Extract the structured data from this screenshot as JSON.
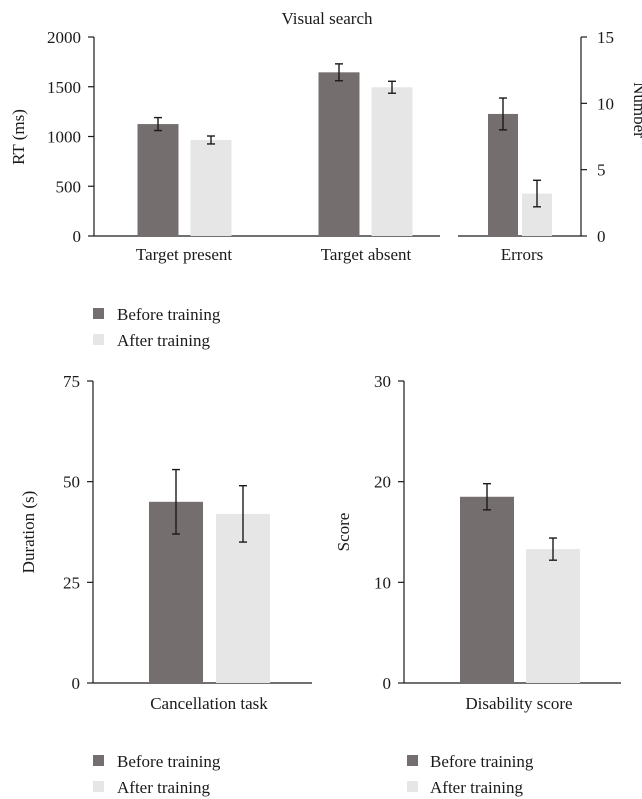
{
  "colors": {
    "before": "#746f6e",
    "after": "#e6e6e6"
  },
  "legends": [
    {
      "items": [
        {
          "label": "Before training",
          "color": "#746f6e"
        },
        {
          "label": "After training",
          "color": "#e6e6e6"
        }
      ]
    },
    {
      "items": [
        {
          "label": "Before training",
          "color": "#746f6e"
        },
        {
          "label": "After training",
          "color": "#e6e6e6"
        }
      ]
    },
    {
      "items": [
        {
          "label": "Before training",
          "color": "#746f6e"
        },
        {
          "label": "After training",
          "color": "#e6e6e6"
        }
      ]
    }
  ],
  "chart_data": [
    {
      "type": "bar",
      "title": "Visual search",
      "ylabel": "RT (ms)",
      "ylim": [
        0,
        2000
      ],
      "yticks": [
        0,
        500,
        1000,
        1500,
        2000
      ],
      "categories": [
        "Target present",
        "Target absent"
      ],
      "series": [
        {
          "name": "Before training",
          "values": [
            1125,
            1645
          ],
          "errors": [
            65,
            85
          ]
        },
        {
          "name": "After training",
          "values": [
            965,
            1495
          ],
          "errors": [
            40,
            60
          ]
        }
      ],
      "grid": false,
      "legend": "bottom"
    },
    {
      "type": "bar",
      "ylabel": "Number",
      "ylim": [
        0,
        15
      ],
      "yticks": [
        0,
        5,
        10,
        15
      ],
      "categories": [
        "Errors"
      ],
      "series": [
        {
          "name": "Before training",
          "values": [
            9.2
          ],
          "errors": [
            1.2
          ]
        },
        {
          "name": "After training",
          "values": [
            3.2
          ],
          "errors": [
            1.0
          ]
        }
      ],
      "grid": false,
      "legend": "bottom"
    },
    {
      "type": "bar",
      "ylabel": "Duration (s)",
      "ylim": [
        0,
        75
      ],
      "yticks": [
        0,
        25,
        50,
        75
      ],
      "categories": [
        "Cancellation task"
      ],
      "series": [
        {
          "name": "Before training",
          "values": [
            45
          ],
          "errors": [
            8
          ]
        },
        {
          "name": "After training",
          "values": [
            42
          ],
          "errors": [
            7
          ]
        }
      ],
      "grid": false,
      "legend": "bottom"
    },
    {
      "type": "bar",
      "ylabel": "Score",
      "ylim": [
        0,
        30
      ],
      "yticks": [
        0,
        10,
        20,
        30
      ],
      "categories": [
        "Disability score"
      ],
      "series": [
        {
          "name": "Before training",
          "values": [
            18.5
          ],
          "errors": [
            1.3
          ]
        },
        {
          "name": "After training",
          "values": [
            13.3
          ],
          "errors": [
            1.1
          ]
        }
      ],
      "grid": false,
      "legend": "bottom"
    }
  ]
}
